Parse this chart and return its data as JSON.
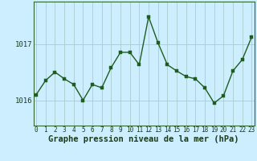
{
  "x": [
    0,
    1,
    2,
    3,
    4,
    5,
    6,
    7,
    8,
    9,
    10,
    11,
    12,
    13,
    14,
    15,
    16,
    17,
    18,
    19,
    20,
    21,
    22,
    23
  ],
  "y": [
    1016.1,
    1016.35,
    1016.5,
    1016.38,
    1016.28,
    1016.0,
    1016.28,
    1016.22,
    1016.58,
    1016.85,
    1016.85,
    1016.63,
    1017.48,
    1017.02,
    1016.63,
    1016.52,
    1016.42,
    1016.38,
    1016.22,
    1015.95,
    1016.08,
    1016.52,
    1016.72,
    1017.12
  ],
  "line_color": "#1f5c1f",
  "marker_color": "#1f5c1f",
  "bg_color": "#cceeff",
  "grid_color": "#aacccc",
  "ylabel_tick1": 1016,
  "ylabel_tick2": 1017,
  "xlabel_label": "Graphe pression niveau de la mer (hPa)",
  "xlabel_fontsize": 7.5,
  "ylim_min": 1015.55,
  "ylim_max": 1017.75,
  "marker_size": 2.5,
  "line_width": 1.0
}
